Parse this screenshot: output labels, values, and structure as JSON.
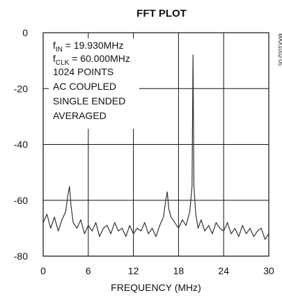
{
  "chart_data": {
    "type": "line",
    "title": "FFT PLOT",
    "xlabel": "FREQUENCY (MHz)",
    "ylabel": "",
    "xlim": [
      0,
      30
    ],
    "ylim": [
      -80,
      0
    ],
    "grid": true,
    "x_ticks": [
      0,
      6,
      12,
      18,
      24,
      30
    ],
    "y_ticks": [
      0,
      -20,
      -40,
      -60,
      -80
    ],
    "x_tick_labels": [
      "0",
      "6",
      "12",
      "18",
      "24",
      "30"
    ],
    "y_tick_labels": [
      "0",
      "-20",
      "-40",
      "-60",
      "-80"
    ],
    "figure_id": "MAX1002-05",
    "annotations": {
      "fin": {
        "main": "f",
        "sub": "IN",
        "rest": " = 19.930MHz"
      },
      "fclk": {
        "main": "f",
        "sub": "CLK",
        "rest": " = 60.000MHz"
      },
      "lines": [
        "1024 POINTS",
        "AC COUPLED",
        "SINGLE ENDED",
        "AVERAGED"
      ]
    },
    "series": [
      {
        "x": [
          0.0,
          0.5,
          1.0,
          1.5,
          2.0,
          2.5,
          3.0,
          3.3,
          3.5,
          3.7,
          4.0,
          4.5,
          5.0,
          5.5,
          6.0,
          6.5,
          7.0,
          7.5,
          8.0,
          8.5,
          9.0,
          9.5,
          10.0,
          10.5,
          11.0,
          11.5,
          12.0,
          12.5,
          13.0,
          13.5,
          14.0,
          14.5,
          15.0,
          15.5,
          16.0,
          16.3,
          16.5,
          16.7,
          17.0,
          17.5,
          18.0,
          18.5,
          19.0,
          19.5,
          19.8,
          19.93,
          20.05,
          20.3,
          20.6,
          21.0,
          21.5,
          22.0,
          22.5,
          23.0,
          23.5,
          24.0,
          24.5,
          25.0,
          25.5,
          26.0,
          26.5,
          27.0,
          27.5,
          28.0,
          28.5,
          29.0,
          29.5,
          30.0
        ],
        "y": [
          -68,
          -65,
          -70,
          -66,
          -71,
          -67,
          -64,
          -58,
          -55,
          -62,
          -68,
          -70,
          -67,
          -72,
          -69,
          -71,
          -68,
          -73,
          -70,
          -69,
          -72,
          -68,
          -71,
          -70,
          -73,
          -69,
          -72,
          -70,
          -71,
          -68,
          -72,
          -70,
          -73,
          -69,
          -66,
          -60,
          -57,
          -63,
          -66,
          -68,
          -70,
          -67,
          -69,
          -64,
          -55,
          -8,
          -55,
          -65,
          -70,
          -67,
          -71,
          -69,
          -72,
          -68,
          -70,
          -71,
          -68,
          -72,
          -70,
          -73,
          -69,
          -72,
          -70,
          -73,
          -71,
          -70,
          -74,
          -72
        ]
      }
    ]
  }
}
